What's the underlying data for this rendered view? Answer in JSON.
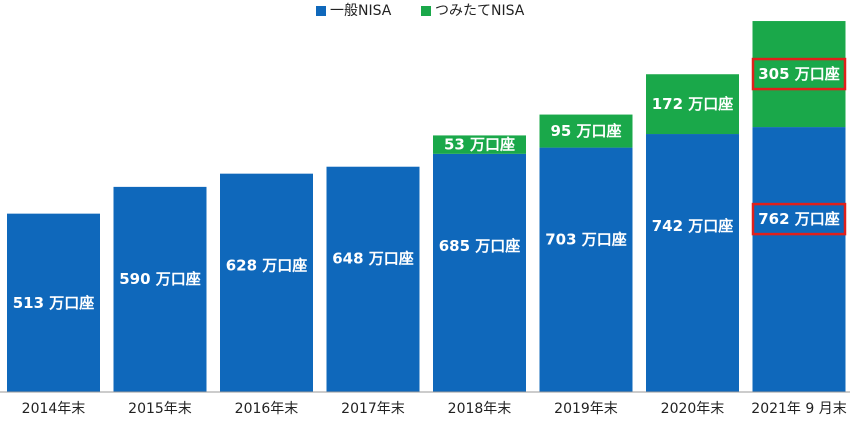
{
  "colors": {
    "general": "#0f68bb",
    "tsumitate": "#1aa84a",
    "highlight": "#e0201b",
    "baseline": "#999999"
  },
  "chart_data": {
    "type": "bar",
    "stacked": true,
    "categories": [
      "2014年末",
      "2015年末",
      "2016年末",
      "2017年末",
      "2018年末",
      "2019年末",
      "2020年末",
      "2021年 9 月末"
    ],
    "series": [
      {
        "name": "一般NISA",
        "values": [
          513,
          590,
          628,
          648,
          685,
          703,
          742,
          762
        ],
        "labels": [
          "513 万口座",
          "590 万口座",
          "628 万口座",
          "648 万口座",
          "685 万口座",
          "703 万口座",
          "742 万口座",
          "762 万口座"
        ]
      },
      {
        "name": "つみたてNISA",
        "values": [
          null,
          null,
          null,
          null,
          53,
          95,
          172,
          305
        ],
        "labels": [
          null,
          null,
          null,
          null,
          "53 万口座",
          "95 万口座",
          "172 万口座",
          "305 万口座"
        ]
      }
    ],
    "highlighted": [
      "762 万口座",
      "305 万口座"
    ],
    "legend_position": "top-center",
    "ylim": [
      0,
      1070
    ],
    "grid": false
  }
}
